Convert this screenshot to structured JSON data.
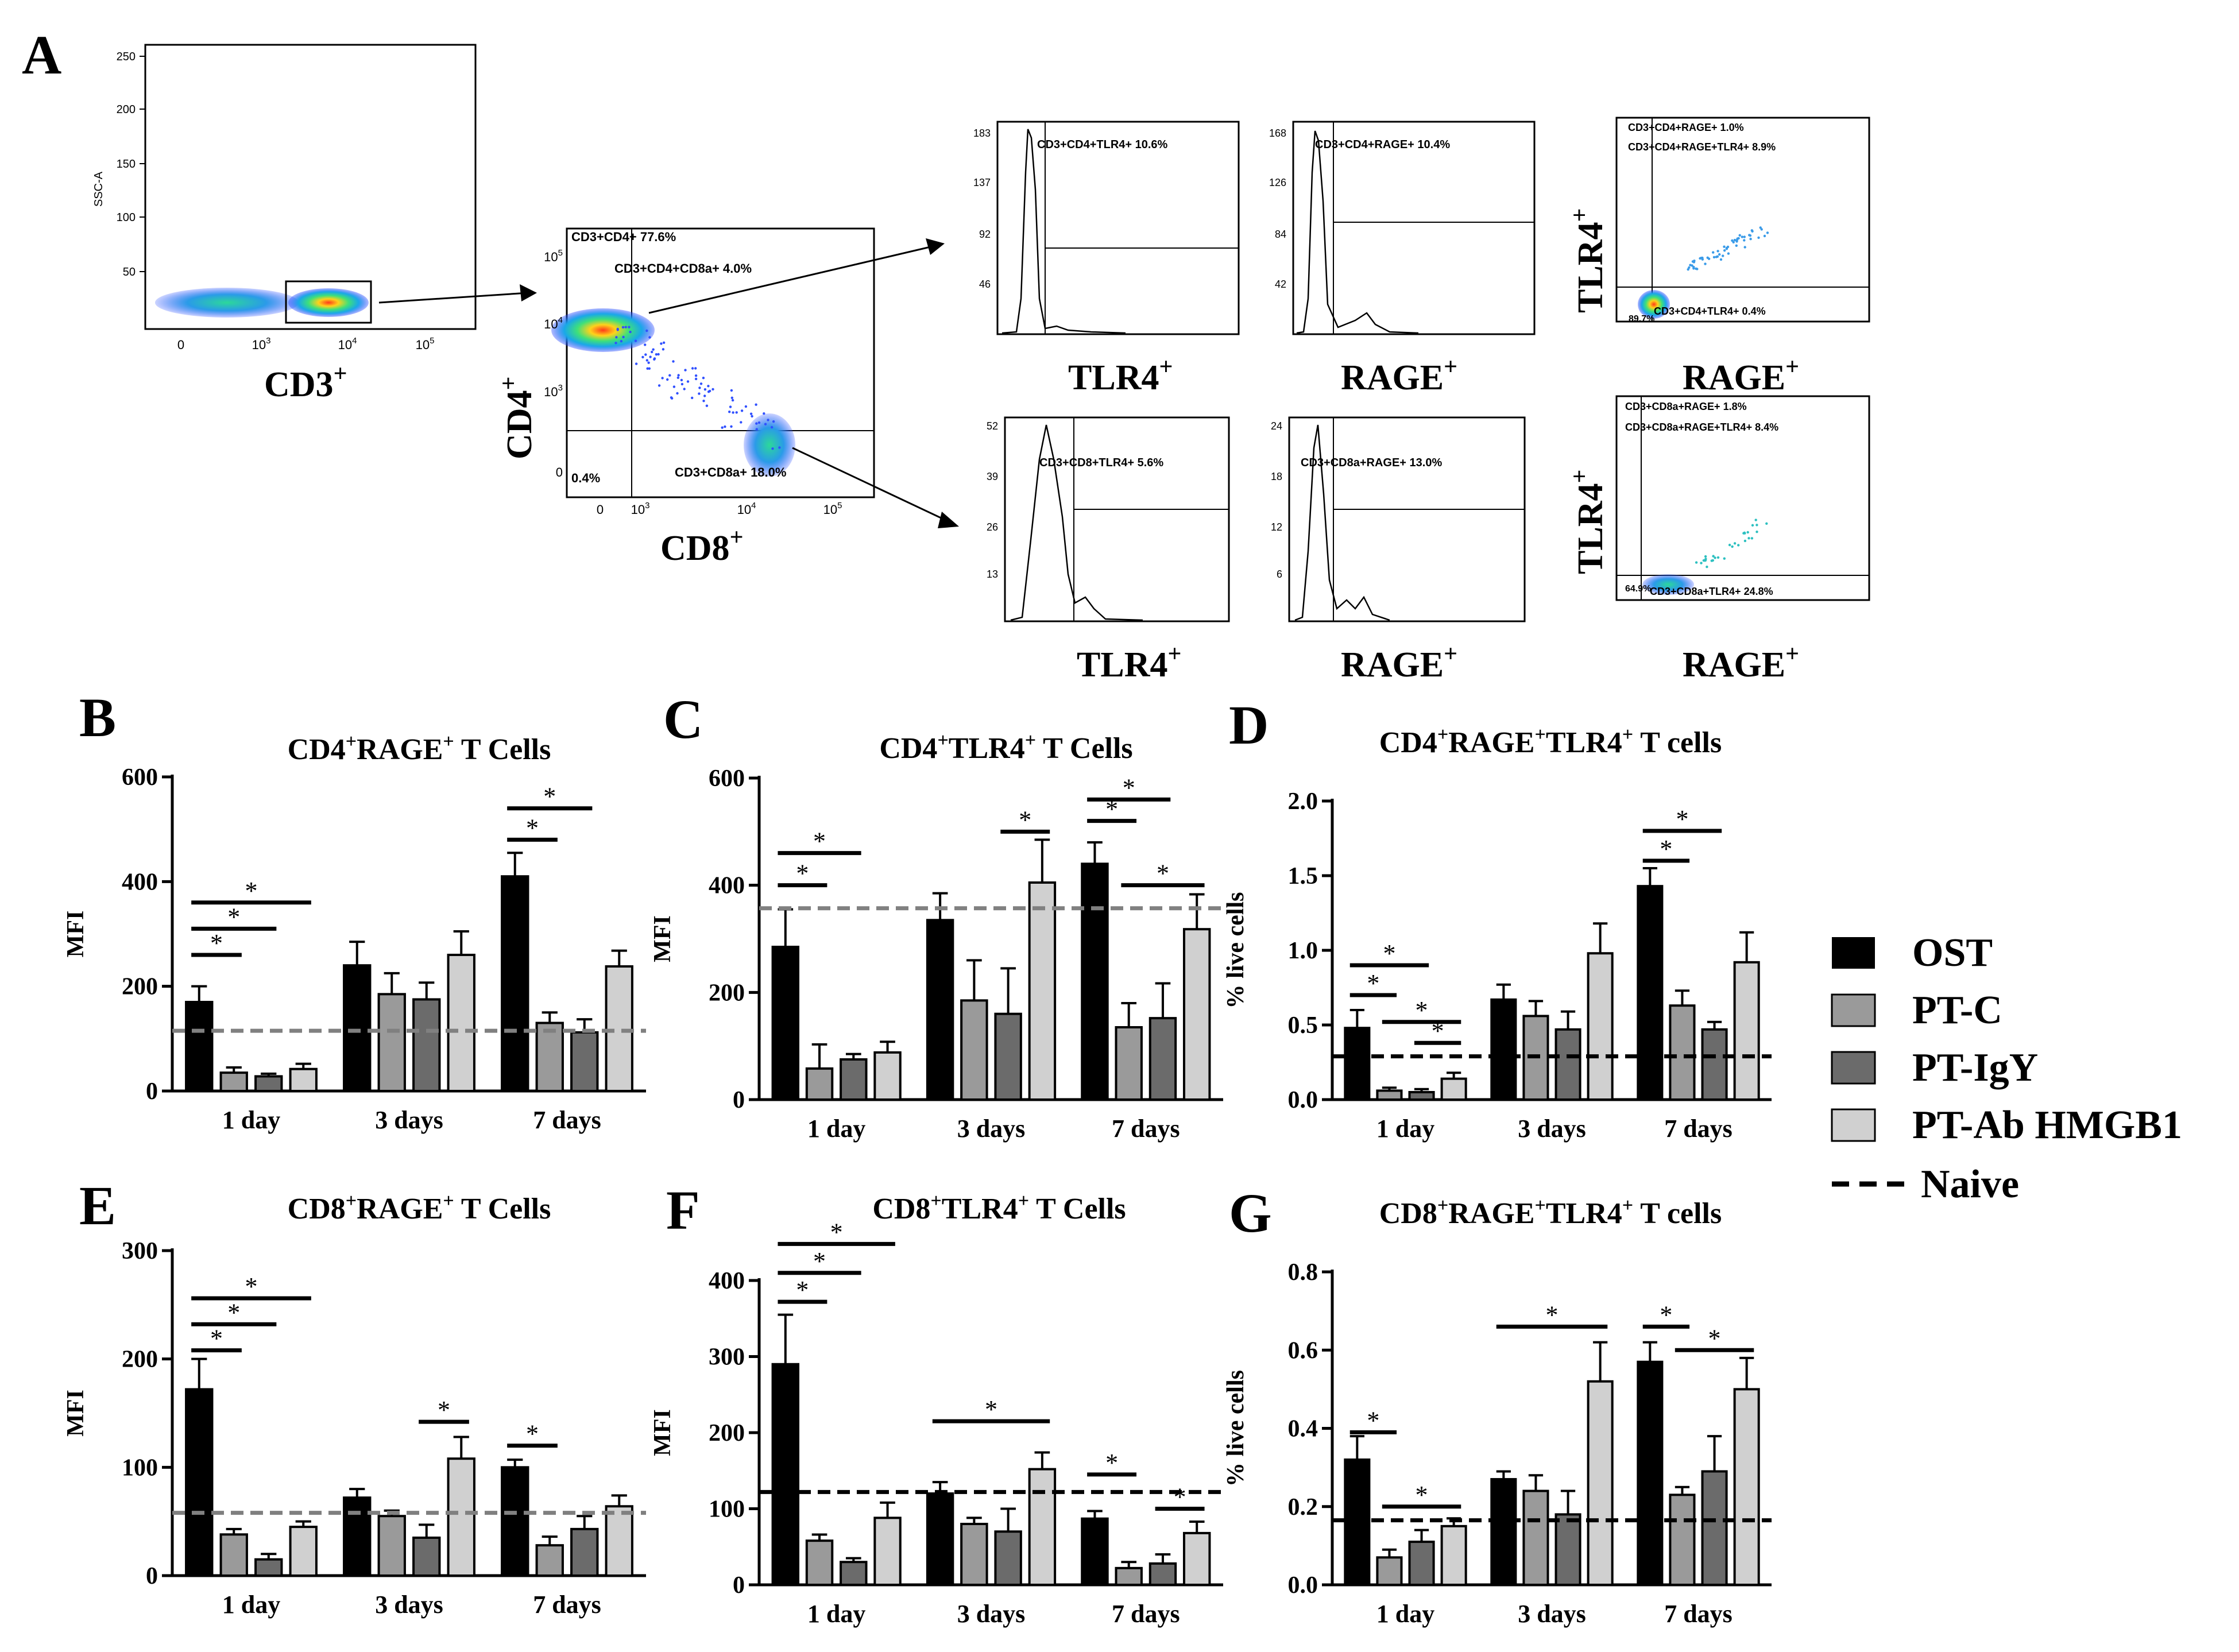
{
  "figure": {
    "colors": {
      "OST": "#000000",
      "PT-C": "#9a9a9a",
      "PT-IgY": "#6b6b6b",
      "PT-Ab HMGB1": "#d0d0d0",
      "naive_gray": "#808080",
      "naive_black": "#000000"
    },
    "legend": {
      "items": [
        "OST",
        "PT-C",
        "PT-IgY",
        "PT-Ab HMGB1"
      ],
      "naive_label": "Naive"
    }
  },
  "panelA": {
    "letter": "A",
    "gate": {
      "xlabel_main": "CD3",
      "xlabel_sup": "+",
      "ylabel": "SSC-A",
      "yticks": [
        "250",
        "200",
        "150",
        "100",
        "50"
      ],
      "xticks": [
        "0",
        "10",
        "10",
        "10"
      ],
      "xtick_exps": [
        "",
        "3",
        "4",
        "5"
      ]
    },
    "cd4cd8": {
      "ylabel_main": "CD4",
      "ylabel_sup": "+",
      "xlabel_main": "CD8",
      "xlabel_sup": "+",
      "labels": [
        "CD3+CD4+ 77.6%",
        "CD3+CD4+CD8a+ 4.0%",
        "CD3+CD8a+ 18.0%",
        "0.4%"
      ],
      "yticks": [
        "10",
        "10",
        "10",
        "0"
      ],
      "ytick_exps": [
        "5",
        "4",
        "3",
        ""
      ],
      "xticks": [
        "0",
        "10",
        "10",
        "10"
      ],
      "xtick_exps": [
        "",
        "3",
        "4",
        "5"
      ]
    },
    "histograms": [
      {
        "label": "CD3+CD4+TLR4+ 10.6%",
        "yticks": [
          "183",
          "137",
          "92",
          "46"
        ],
        "xlabel_main": "TLR4",
        "xlabel_sup": "+"
      },
      {
        "label": "CD3+CD4+RAGE+ 10.4%",
        "yticks": [
          "168",
          "126",
          "84",
          "42"
        ],
        "xlabel_main": "RAGE",
        "xlabel_sup": "+"
      },
      {
        "label": "CD3+CD8+TLR4+ 5.6%",
        "yticks": [
          "52",
          "39",
          "26",
          "13"
        ],
        "xlabel_main": "TLR4",
        "xlabel_sup": "+"
      },
      {
        "label": "CD3+CD8a+RAGE+ 13.0%",
        "yticks": [
          "24",
          "18",
          "12",
          "6"
        ],
        "xlabel_main": "RAGE",
        "xlabel_sup": "+"
      }
    ],
    "quads": [
      {
        "labels": [
          "CD3+CD4+RAGE+ 1.0%",
          "CD3+CD4+RAGE+TLR4+ 8.9%",
          "CD3+CD4+TLR4+ 0.4%",
          "89.7%"
        ],
        "ylabel_main": "TLR4",
        "ylabel_sup": "+",
        "xlabel_main": "RAGE",
        "xlabel_sup": "+"
      },
      {
        "labels": [
          "CD3+CD8a+RAGE+ 1.8%",
          "CD3+CD8a+RAGE+TLR4+ 8.4%",
          "CD3+CD8a+TLR4+ 24.8%",
          "64.9%"
        ],
        "ylabel_main": "TLR4",
        "ylabel_sup": "+",
        "xlabel_main": "RAGE",
        "xlabel_sup": "+"
      }
    ]
  },
  "chart_data": [
    {
      "panel": "B",
      "type": "bar",
      "title_pre": "CD4",
      "title_sup1": "+",
      "title_mid": "RAGE",
      "title_sup2": "+",
      "title_post": " T Cells",
      "ylabel": "MFI",
      "ylim": [
        0,
        600
      ],
      "yticks": [
        0,
        200,
        400,
        600
      ],
      "categories": [
        "1 day",
        "3 days",
        "7 days"
      ],
      "series": [
        {
          "name": "OST",
          "values": [
            170,
            240,
            410
          ],
          "errors": [
            30,
            45,
            45
          ]
        },
        {
          "name": "PT-C",
          "values": [
            35,
            185,
            130
          ],
          "errors": [
            10,
            40,
            20
          ]
        },
        {
          "name": "PT-IgY",
          "values": [
            28,
            175,
            112
          ],
          "errors": [
            5,
            32,
            25
          ]
        },
        {
          "name": "PT-Ab HMGB1",
          "values": [
            42,
            260,
            238
          ],
          "errors": [
            10,
            45,
            30
          ]
        }
      ],
      "naive": 115,
      "naive_style": "gray",
      "sig": [
        {
          "g": 0,
          "a": 0,
          "b": 1,
          "y": 260
        },
        {
          "g": 0,
          "a": 0,
          "b": 2,
          "y": 310
        },
        {
          "g": 0,
          "a": 0,
          "b": 3,
          "y": 360
        },
        {
          "g": 2,
          "a": 0,
          "b": 1,
          "y": 480
        },
        {
          "g": 2,
          "a": 0,
          "b": 2,
          "y": 540
        }
      ]
    },
    {
      "panel": "C",
      "type": "bar",
      "title_pre": "CD4",
      "title_sup1": "+",
      "title_mid": "TLR4",
      "title_sup2": "+",
      "title_post": " T Cells",
      "ylabel": "MFI",
      "ylim": [
        0,
        600
      ],
      "yticks": [
        0,
        200,
        400,
        600
      ],
      "categories": [
        "1 day",
        "3 days",
        "7 days"
      ],
      "series": [
        {
          "name": "OST",
          "values": [
            285,
            335,
            440
          ],
          "errors": [
            70,
            50,
            40
          ]
        },
        {
          "name": "PT-C",
          "values": [
            58,
            185,
            135
          ],
          "errors": [
            45,
            75,
            45
          ]
        },
        {
          "name": "PT-IgY",
          "values": [
            75,
            160,
            152
          ],
          "errors": [
            10,
            85,
            65
          ]
        },
        {
          "name": "PT-Ab HMGB1",
          "values": [
            88,
            405,
            318
          ],
          "errors": [
            20,
            80,
            65
          ]
        }
      ],
      "naive": 357,
      "naive_style": "gray",
      "sig": [
        {
          "g": 0,
          "a": 0,
          "b": 1,
          "y": 400
        },
        {
          "g": 0,
          "a": 0,
          "b": 2,
          "y": 460
        },
        {
          "g": 1,
          "a": 2,
          "b": 3,
          "y": 500
        },
        {
          "g": 2,
          "a": 0,
          "b": 1,
          "y": 520
        },
        {
          "g": 2,
          "a": 0,
          "b": 2,
          "y": 560
        },
        {
          "g": 2,
          "a": 1,
          "b": 3,
          "y": 400
        }
      ]
    },
    {
      "panel": "D",
      "type": "bar",
      "title_pre": "CD4",
      "title_sup1": "+",
      "title_mid": "RAGE",
      "title_sup2": "+",
      "title_post": "",
      "title_extra": "TLR4",
      "title_sup3": "+",
      "title_end": " T cells",
      "ylabel": "% live cells",
      "ylim": [
        0,
        2.0
      ],
      "yticks": [
        "0.0",
        "0.5",
        "1.0",
        "1.5",
        "2.0"
      ],
      "categories": [
        "1 day",
        "3 days",
        "7 days"
      ],
      "series": [
        {
          "name": "OST",
          "values": [
            0.48,
            0.67,
            1.43
          ],
          "errors": [
            0.12,
            0.1,
            0.12
          ]
        },
        {
          "name": "PT-C",
          "values": [
            0.06,
            0.56,
            0.63
          ],
          "errors": [
            0.02,
            0.1,
            0.1
          ]
        },
        {
          "name": "PT-IgY",
          "values": [
            0.05,
            0.47,
            0.47
          ],
          "errors": [
            0.02,
            0.12,
            0.05
          ]
        },
        {
          "name": "PT-Ab HMGB1",
          "values": [
            0.14,
            0.98,
            0.92
          ],
          "errors": [
            0.04,
            0.2,
            0.2
          ]
        }
      ],
      "naive": 0.29,
      "naive_style": "black",
      "sig": [
        {
          "g": 0,
          "a": 0,
          "b": 1,
          "y": 0.7
        },
        {
          "g": 0,
          "a": 0,
          "b": 2,
          "y": 0.9
        },
        {
          "g": 0,
          "a": 1,
          "b": 3,
          "y": 0.52
        },
        {
          "g": 0,
          "a": 2,
          "b": 3,
          "y": 0.38
        },
        {
          "g": 2,
          "a": 0,
          "b": 1,
          "y": 1.6
        },
        {
          "g": 2,
          "a": 0,
          "b": 2,
          "y": 1.8
        }
      ]
    },
    {
      "panel": "E",
      "type": "bar",
      "title_pre": "CD8",
      "title_sup1": "+",
      "title_mid": "RAGE",
      "title_sup2": "+",
      "title_post": " T Cells",
      "ylabel": "MFI",
      "ylim": [
        0,
        300
      ],
      "yticks": [
        0,
        100,
        200,
        300
      ],
      "categories": [
        "1 day",
        "3 days",
        "7 days"
      ],
      "series": [
        {
          "name": "OST",
          "values": [
            172,
            72,
            100
          ],
          "errors": [
            28,
            8,
            7
          ]
        },
        {
          "name": "PT-C",
          "values": [
            38,
            55,
            28
          ],
          "errors": [
            5,
            5,
            8
          ]
        },
        {
          "name": "PT-IgY",
          "values": [
            15,
            35,
            43
          ],
          "errors": [
            5,
            12,
            12
          ]
        },
        {
          "name": "PT-Ab HMGB1",
          "values": [
            45,
            108,
            64
          ],
          "errors": [
            5,
            20,
            10
          ]
        }
      ],
      "naive": 58,
      "naive_style": "gray",
      "sig": [
        {
          "g": 0,
          "a": 0,
          "b": 1,
          "y": 208
        },
        {
          "g": 0,
          "a": 0,
          "b": 2,
          "y": 232
        },
        {
          "g": 0,
          "a": 0,
          "b": 3,
          "y": 256
        },
        {
          "g": 1,
          "a": 2,
          "b": 3,
          "y": 142
        },
        {
          "g": 2,
          "a": 0,
          "b": 1,
          "y": 120
        }
      ]
    },
    {
      "panel": "F",
      "type": "bar",
      "title_pre": "CD8",
      "title_sup1": "+",
      "title_mid": "TLR4",
      "title_sup2": "+",
      "title_post": " T Cells",
      "ylabel": "MFI",
      "ylim": [
        0,
        400
      ],
      "yticks": [
        0,
        100,
        200,
        300,
        400
      ],
      "categories": [
        "1 day",
        "3 days",
        "7 days"
      ],
      "series": [
        {
          "name": "OST",
          "values": [
            290,
            120,
            87
          ],
          "errors": [
            65,
            15,
            10
          ]
        },
        {
          "name": "PT-C",
          "values": [
            58,
            80,
            22
          ],
          "errors": [
            8,
            8,
            8
          ]
        },
        {
          "name": "PT-IgY",
          "values": [
            30,
            70,
            28
          ],
          "errors": [
            5,
            30,
            12
          ]
        },
        {
          "name": "PT-Ab HMGB1",
          "values": [
            88,
            152,
            68
          ],
          "errors": [
            20,
            22,
            15
          ]
        }
      ],
      "naive": 122,
      "naive_style": "black",
      "sig": [
        {
          "g": 0,
          "a": 0,
          "b": 1,
          "y": 372
        },
        {
          "g": 0,
          "a": 0,
          "b": 2,
          "y": 410
        },
        {
          "g": 0,
          "a": 0,
          "b": 3,
          "y": 448
        },
        {
          "g": 1,
          "a": 0,
          "b": 3,
          "y": 215
        },
        {
          "g": 2,
          "a": 0,
          "b": 1,
          "y": 145
        },
        {
          "g": 2,
          "a": 2,
          "b": 3,
          "y": 100
        }
      ]
    },
    {
      "panel": "G",
      "type": "bar",
      "title_pre": "CD8",
      "title_sup1": "+",
      "title_mid": "RAGE",
      "title_sup2": "+",
      "title_post": "",
      "title_extra": "TLR4",
      "title_sup3": "+",
      "title_end": " T cells",
      "ylabel": "% live cells",
      "ylim": [
        0,
        0.8
      ],
      "yticks": [
        "0.0",
        "0.2",
        "0.4",
        "0.6",
        "0.8"
      ],
      "categories": [
        "1 day",
        "3 days",
        "7 days"
      ],
      "series": [
        {
          "name": "OST",
          "values": [
            0.32,
            0.27,
            0.57
          ],
          "errors": [
            0.06,
            0.02,
            0.05
          ]
        },
        {
          "name": "PT-C",
          "values": [
            0.07,
            0.24,
            0.23
          ],
          "errors": [
            0.02,
            0.04,
            0.02
          ]
        },
        {
          "name": "PT-IgY",
          "values": [
            0.11,
            0.18,
            0.29
          ],
          "errors": [
            0.03,
            0.06,
            0.09
          ]
        },
        {
          "name": "PT-Ab HMGB1",
          "values": [
            0.15,
            0.52,
            0.5
          ],
          "errors": [
            0.02,
            0.1,
            0.08
          ]
        }
      ],
      "naive": 0.165,
      "naive_style": "black",
      "sig": [
        {
          "g": 0,
          "a": 0,
          "b": 1,
          "y": 0.39
        },
        {
          "g": 0,
          "a": 1,
          "b": 3,
          "y": 0.2
        },
        {
          "g": 1,
          "a": 0,
          "b": 3,
          "y": 0.66
        },
        {
          "g": 2,
          "a": 0,
          "b": 1,
          "y": 0.66
        },
        {
          "g": 2,
          "a": 1,
          "b": 3,
          "y": 0.6
        }
      ]
    }
  ]
}
